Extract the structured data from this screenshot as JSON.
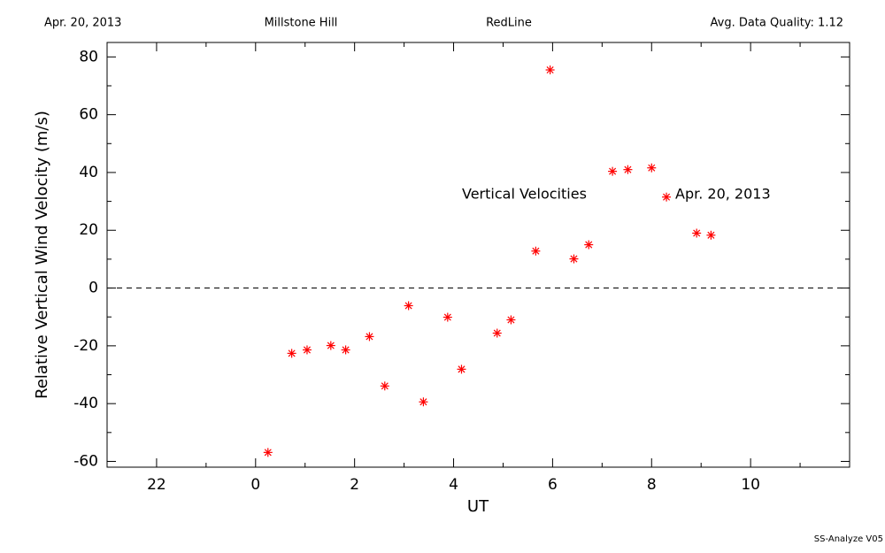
{
  "chart_data": {
    "type": "scatter",
    "header": [
      "Apr. 20, 2013",
      "Millstone Hill",
      "RedLine",
      "Avg. Data Quality: 1.12"
    ],
    "xlabel": "UT",
    "ylabel": "Relative Vertical Wind Velocity (m/s)",
    "annotations": [
      "Vertical Velocities",
      "Apr. 20, 2013"
    ],
    "footer": "SS-Analyze V05",
    "color": "#ff0000",
    "x": [
      0.25,
      0.73,
      1.04,
      1.52,
      1.82,
      2.3,
      2.61,
      3.09,
      3.39,
      3.88,
      4.16,
      4.88,
      5.16,
      5.66,
      5.95,
      6.43,
      6.73,
      7.21,
      7.52,
      8.0,
      8.3,
      8.91,
      9.2
    ],
    "values": [
      -56.9,
      -22.6,
      -21.4,
      -19.9,
      -21.4,
      -16.8,
      -33.9,
      -6.1,
      -39.4,
      -10.1,
      -28.1,
      -15.6,
      -11.0,
      12.8,
      75.5,
      10.1,
      15.0,
      40.4,
      41.0,
      41.6,
      31.5,
      19.0,
      18.3
    ],
    "xlim": [
      -3,
      12
    ],
    "xticks": [
      {
        "value": -2,
        "label": "22"
      },
      0,
      2,
      4,
      6,
      8,
      10
    ],
    "xminorticks": [
      -3,
      -1,
      1,
      3,
      5,
      7,
      9,
      11
    ],
    "ylim": [
      -62,
      85
    ],
    "yticks": [
      -60,
      -40,
      -20,
      0,
      20,
      40,
      60,
      80
    ],
    "yminorticks": [
      -50,
      -30,
      -10,
      10,
      30,
      50,
      70
    ],
    "grid": false
  }
}
